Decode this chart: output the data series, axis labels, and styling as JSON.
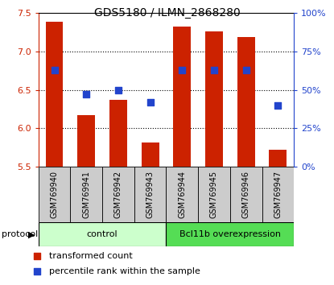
{
  "title": "GDS5180 / ILMN_2868280",
  "samples": [
    "GSM769940",
    "GSM769941",
    "GSM769942",
    "GSM769943",
    "GSM769944",
    "GSM769945",
    "GSM769946",
    "GSM769947"
  ],
  "transformed_count": [
    7.38,
    6.17,
    6.37,
    5.82,
    7.32,
    7.26,
    7.19,
    5.72
  ],
  "percentile_rank": [
    63,
    47,
    50,
    42,
    63,
    63,
    63,
    40
  ],
  "ylim_left": [
    5.5,
    7.5
  ],
  "ylim_right": [
    0,
    100
  ],
  "yticks_left": [
    5.5,
    6.0,
    6.5,
    7.0,
    7.5
  ],
  "yticks_right": [
    0,
    25,
    50,
    75,
    100
  ],
  "bar_color": "#cc2200",
  "dot_color": "#2244cc",
  "bar_width": 0.55,
  "baseline": 5.5,
  "control_color": "#ccffcc",
  "bcl_color": "#55dd55",
  "groups": [
    {
      "label": "control",
      "n": 4,
      "color": "#ccffcc"
    },
    {
      "label": "Bcl11b overexpression",
      "n": 4,
      "color": "#44cc44"
    }
  ],
  "protocol_label": "protocol",
  "legend_items": [
    {
      "label": "transformed count",
      "color": "#cc2200"
    },
    {
      "label": "percentile rank within the sample",
      "color": "#2244cc"
    }
  ],
  "left_axis_color": "#cc2200",
  "right_axis_color": "#2244cc",
  "sample_box_color": "#cccccc",
  "title_fontsize": 10,
  "tick_fontsize": 8,
  "sample_fontsize": 7,
  "legend_fontsize": 8
}
